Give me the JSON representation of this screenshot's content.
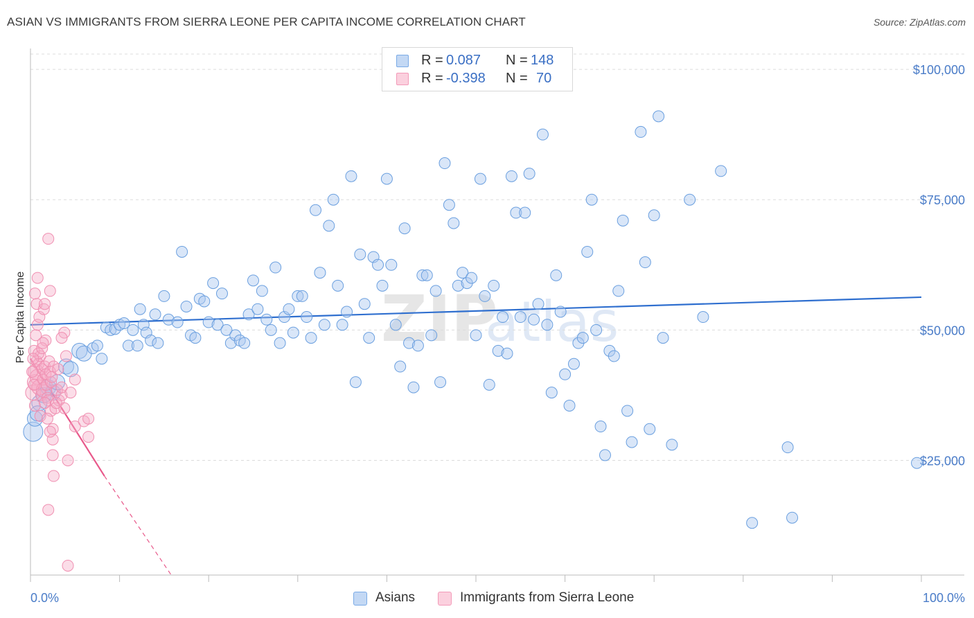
{
  "title": "ASIAN VS IMMIGRANTS FROM SIERRA LEONE PER CAPITA INCOME CORRELATION CHART",
  "source": "Source: ZipAtlas.com",
  "watermark": {
    "text_zip": "ZIP",
    "text_atlas": "atlas"
  },
  "legend": {
    "r_label": "R =",
    "n_label": "N =",
    "rows": [
      {
        "name": "Asians",
        "r": "0.087",
        "n": "148",
        "color": "#7aaae6"
      },
      {
        "name": "Immigrants from Sierra Leone",
        "r": "-0.398",
        "n": "70",
        "color": "#f39ab8"
      }
    ]
  },
  "chart_data": {
    "type": "scatter",
    "title": "ASIAN VS IMMIGRANTS FROM SIERRA LEONE PER CAPITA INCOME CORRELATION CHART",
    "xlabel": "",
    "ylabel": "Per Capita Income",
    "xlim": [
      0,
      100
    ],
    "ylim": [
      3000,
      104000
    ],
    "x_tick_labels": [
      "0.0%",
      "100.0%"
    ],
    "y_ticks": [
      25000,
      50000,
      75000,
      100000
    ],
    "y_tick_labels": [
      "$25,000",
      "$50,000",
      "$75,000",
      "$100,000"
    ],
    "grid": "horizontal dashed",
    "legend_position": "top-center and bottom",
    "series": [
      {
        "name": "Asians",
        "color": "#7aaae6",
        "trend": {
          "x": [
            0,
            100
          ],
          "y": [
            51000,
            56300
          ]
        },
        "points": [
          [
            0.3,
            30500,
            3
          ],
          [
            0.5,
            33000,
            2
          ],
          [
            1.0,
            36000,
            2
          ],
          [
            1.5,
            37500,
            2
          ],
          [
            2.0,
            39000,
            2
          ],
          [
            2.5,
            38000,
            2
          ],
          [
            3.0,
            40000,
            2
          ],
          [
            4.0,
            43000,
            2
          ],
          [
            4.5,
            42500,
            2
          ],
          [
            5.5,
            46000,
            2
          ],
          [
            6.0,
            45500,
            2
          ],
          [
            7.0,
            46500,
            1
          ],
          [
            7.5,
            47000,
            1
          ],
          [
            8.0,
            44500,
            1
          ],
          [
            8.5,
            50500,
            1
          ],
          [
            9.0,
            50000,
            1
          ],
          [
            9.5,
            50200,
            1
          ],
          [
            10.0,
            51000,
            1
          ],
          [
            10.5,
            51300,
            1
          ],
          [
            11.0,
            47000,
            1
          ],
          [
            11.5,
            50000,
            1
          ],
          [
            12.0,
            47000,
            1
          ],
          [
            12.3,
            54000,
            1
          ],
          [
            12.7,
            51000,
            1
          ],
          [
            13.0,
            49500,
            1
          ],
          [
            13.5,
            48000,
            1
          ],
          [
            14.0,
            53000,
            1
          ],
          [
            14.3,
            47500,
            1
          ],
          [
            15.0,
            56500,
            1
          ],
          [
            15.5,
            52000,
            1
          ],
          [
            16.5,
            51500,
            1
          ],
          [
            17.0,
            65000,
            1
          ],
          [
            17.5,
            54500,
            1
          ],
          [
            18.0,
            49000,
            1
          ],
          [
            18.5,
            48500,
            1
          ],
          [
            19.0,
            56000,
            1
          ],
          [
            19.5,
            55500,
            1
          ],
          [
            20.0,
            51500,
            1
          ],
          [
            20.5,
            59000,
            1
          ],
          [
            21.0,
            51000,
            1
          ],
          [
            21.5,
            57000,
            1
          ],
          [
            22.0,
            50000,
            1
          ],
          [
            22.5,
            47500,
            1
          ],
          [
            23.0,
            49000,
            1
          ],
          [
            23.5,
            48000,
            1
          ],
          [
            24.0,
            47500,
            1
          ],
          [
            24.5,
            53000,
            1
          ],
          [
            25.0,
            59500,
            1
          ],
          [
            25.5,
            54000,
            1
          ],
          [
            26.0,
            57500,
            1
          ],
          [
            26.5,
            52000,
            1
          ],
          [
            27.0,
            50000,
            1
          ],
          [
            27.5,
            62000,
            1
          ],
          [
            28.0,
            47500,
            1
          ],
          [
            28.5,
            52500,
            1
          ],
          [
            29.0,
            54000,
            1
          ],
          [
            29.5,
            49500,
            1
          ],
          [
            30.0,
            56500,
            1
          ],
          [
            30.5,
            56500,
            1
          ],
          [
            31.0,
            52500,
            1
          ],
          [
            31.5,
            48500,
            1
          ],
          [
            32.0,
            73000,
            1
          ],
          [
            32.5,
            61000,
            1
          ],
          [
            33.0,
            51000,
            1
          ],
          [
            33.5,
            70000,
            1
          ],
          [
            34.0,
            75000,
            1
          ],
          [
            34.5,
            58500,
            1
          ],
          [
            35.0,
            51000,
            1
          ],
          [
            35.5,
            53500,
            1
          ],
          [
            36.0,
            79500,
            1
          ],
          [
            36.5,
            40000,
            1
          ],
          [
            37.0,
            64500,
            1
          ],
          [
            37.5,
            55000,
            1
          ],
          [
            38.0,
            48500,
            1
          ],
          [
            38.5,
            64000,
            1
          ],
          [
            39.0,
            62500,
            1
          ],
          [
            39.5,
            58500,
            1
          ],
          [
            40.0,
            79000,
            1
          ],
          [
            40.5,
            62500,
            1
          ],
          [
            41.0,
            51000,
            1
          ],
          [
            41.5,
            43000,
            1
          ],
          [
            42.0,
            69500,
            1
          ],
          [
            42.5,
            47500,
            1
          ],
          [
            43.0,
            39000,
            1
          ],
          [
            43.5,
            47000,
            1
          ],
          [
            44.0,
            60500,
            1
          ],
          [
            44.5,
            60500,
            1
          ],
          [
            45.0,
            49000,
            1
          ],
          [
            45.5,
            57500,
            1
          ],
          [
            46.0,
            40000,
            1
          ],
          [
            46.5,
            82000,
            1
          ],
          [
            47.0,
            74000,
            1
          ],
          [
            47.5,
            70500,
            1
          ],
          [
            48.0,
            58500,
            1
          ],
          [
            48.5,
            61000,
            1
          ],
          [
            49.0,
            59000,
            1
          ],
          [
            49.5,
            60000,
            1
          ],
          [
            50.0,
            49000,
            1
          ],
          [
            50.5,
            79000,
            1
          ],
          [
            51.0,
            56500,
            1
          ],
          [
            51.5,
            39500,
            1
          ],
          [
            52.0,
            58500,
            1
          ],
          [
            52.5,
            46000,
            1
          ],
          [
            53.0,
            52500,
            1
          ],
          [
            53.5,
            45500,
            1
          ],
          [
            54.0,
            79500,
            1
          ],
          [
            54.5,
            72500,
            1
          ],
          [
            55.0,
            52500,
            1
          ],
          [
            55.5,
            72500,
            1
          ],
          [
            56.0,
            80000,
            1
          ],
          [
            56.5,
            52000,
            1
          ],
          [
            57.0,
            55000,
            1
          ],
          [
            57.5,
            87500,
            1
          ],
          [
            58.0,
            51000,
            1
          ],
          [
            58.5,
            38000,
            1
          ],
          [
            59.0,
            60500,
            1
          ],
          [
            59.5,
            53500,
            1
          ],
          [
            60.0,
            41500,
            1
          ],
          [
            60.5,
            35500,
            1
          ],
          [
            61.0,
            43500,
            1
          ],
          [
            61.5,
            47500,
            1
          ],
          [
            62.0,
            48500,
            1
          ],
          [
            62.5,
            65000,
            1
          ],
          [
            63.0,
            75000,
            1
          ],
          [
            63.5,
            50000,
            1
          ],
          [
            64.0,
            31500,
            1
          ],
          [
            64.5,
            26000,
            1
          ],
          [
            65.0,
            46000,
            1
          ],
          [
            65.5,
            45000,
            1
          ],
          [
            66.0,
            57500,
            1
          ],
          [
            66.5,
            71000,
            1
          ],
          [
            67.0,
            34500,
            1
          ],
          [
            67.5,
            28500,
            1
          ],
          [
            68.5,
            88000,
            1
          ],
          [
            69.0,
            63000,
            1
          ],
          [
            69.5,
            31000,
            1
          ],
          [
            70.0,
            72000,
            1
          ],
          [
            70.5,
            91000,
            1
          ],
          [
            71.0,
            48500,
            1
          ],
          [
            72.0,
            28000,
            1
          ],
          [
            74.0,
            75000,
            1
          ],
          [
            75.5,
            52500,
            1
          ],
          [
            77.5,
            80500,
            1
          ],
          [
            81.0,
            13000,
            1
          ],
          [
            85.5,
            14000,
            1
          ],
          [
            85.0,
            27500,
            1
          ],
          [
            99.5,
            24500,
            1
          ],
          [
            0.8,
            34000,
            2
          ]
        ]
      },
      {
        "name": "Immigrants from Sierra Leone",
        "color": "#f39ab8",
        "trend": {
          "x": [
            0,
            8.3
          ],
          "y": [
            44500,
            22000
          ]
        },
        "trend_extension": {
          "x": [
            8.3,
            15.8
          ],
          "y": [
            22000,
            3000
          ]
        },
        "points": [
          [
            0.3,
            38000,
            2
          ],
          [
            0.5,
            40000,
            2
          ],
          [
            0.6,
            42000,
            2
          ],
          [
            0.7,
            44000,
            1
          ],
          [
            0.8,
            41000,
            2
          ],
          [
            0.9,
            43500,
            1
          ],
          [
            1.0,
            39000,
            2
          ],
          [
            1.1,
            45000,
            1
          ],
          [
            1.2,
            37500,
            1
          ],
          [
            1.3,
            42500,
            1
          ],
          [
            1.4,
            40500,
            1
          ],
          [
            1.5,
            38500,
            2
          ],
          [
            1.6,
            43000,
            1
          ],
          [
            1.7,
            41500,
            1
          ],
          [
            1.8,
            39500,
            1
          ],
          [
            1.9,
            37000,
            1
          ],
          [
            2.0,
            36500,
            1
          ],
          [
            2.1,
            44000,
            1
          ],
          [
            2.2,
            42000,
            1
          ],
          [
            2.3,
            40000,
            1
          ],
          [
            0.4,
            46000,
            1
          ],
          [
            0.6,
            49000,
            1
          ],
          [
            0.8,
            51000,
            1
          ],
          [
            0.7,
            55000,
            1
          ],
          [
            0.8,
            60000,
            1
          ],
          [
            0.5,
            57000,
            1
          ],
          [
            1.0,
            52500,
            1
          ],
          [
            1.5,
            54000,
            1
          ],
          [
            1.6,
            55000,
            1
          ],
          [
            1.7,
            48000,
            1
          ],
          [
            2.0,
            67500,
            1
          ],
          [
            2.2,
            57500,
            1
          ],
          [
            2.3,
            34500,
            1
          ],
          [
            2.5,
            31000,
            1
          ],
          [
            2.5,
            29000,
            1
          ],
          [
            2.5,
            26000,
            1
          ],
          [
            2.6,
            22000,
            1
          ],
          [
            2.0,
            15500,
            1
          ],
          [
            2.8,
            35000,
            1
          ],
          [
            3.0,
            38500,
            1
          ],
          [
            3.2,
            36500,
            1
          ],
          [
            3.5,
            37500,
            1
          ],
          [
            3.5,
            39000,
            1
          ],
          [
            3.8,
            49500,
            1
          ],
          [
            4.0,
            45000,
            1
          ],
          [
            3.5,
            48500,
            1
          ],
          [
            3.8,
            35000,
            1
          ],
          [
            4.2,
            25000,
            1
          ],
          [
            4.5,
            38000,
            1
          ],
          [
            5.0,
            31500,
            1
          ],
          [
            5.0,
            40500,
            1
          ],
          [
            6.0,
            32500,
            1
          ],
          [
            6.5,
            29500,
            1
          ],
          [
            6.5,
            33000,
            1
          ],
          [
            4.2,
            4800,
            1
          ],
          [
            0.5,
            35500,
            1
          ],
          [
            1.1,
            33500,
            1
          ],
          [
            0.9,
            45500,
            1
          ],
          [
            1.3,
            46500,
            1
          ],
          [
            1.6,
            36000,
            1
          ],
          [
            2.4,
            41000,
            1
          ],
          [
            2.6,
            43000,
            1
          ],
          [
            1.9,
            33000,
            1
          ],
          [
            2.2,
            30500,
            1
          ],
          [
            0.2,
            42000,
            1
          ],
          [
            0.3,
            44500,
            1
          ],
          [
            0.4,
            39500,
            1
          ],
          [
            1.4,
            47500,
            1
          ],
          [
            2.9,
            36000,
            1
          ],
          [
            3.1,
            42500,
            1
          ]
        ]
      }
    ]
  }
}
